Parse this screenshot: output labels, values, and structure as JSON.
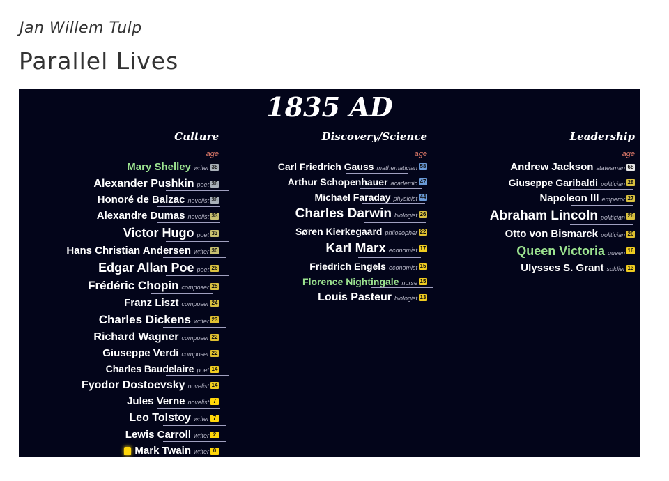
{
  "header": {
    "author": "Jan Willem Tulp",
    "title": "Parallel Lives"
  },
  "viz": {
    "year": "1835 AD",
    "age_label": "age",
    "columns": [
      {
        "key": "culture",
        "title": "Culture",
        "people": [
          {
            "name": "Mary Shelley",
            "role": "writer",
            "age": "38",
            "size": 15,
            "highlight": true,
            "color": "#a8b0b8"
          },
          {
            "name": "Alexander Pushkin",
            "role": "poet",
            "age": "36",
            "size": 16,
            "color": "#a8b0b8"
          },
          {
            "name": "Honoré de Balzac",
            "role": "novelist",
            "age": "36",
            "size": 15,
            "color": "#a8b0b8"
          },
          {
            "name": "Alexandre Dumas",
            "role": "novelist",
            "age": "33",
            "size": 15,
            "color": "#c8c070"
          },
          {
            "name": "Victor Hugo",
            "role": "poet",
            "age": "33",
            "size": 18,
            "color": "#c8c070"
          },
          {
            "name": "Hans Christian Andersen",
            "role": "writer",
            "age": "30",
            "size": 15,
            "color": "#c8c070"
          },
          {
            "name": "Edgar Allan Poe",
            "role": "poet",
            "age": "26",
            "size": 18,
            "color": "#d8c040"
          },
          {
            "name": "Frédéric Chopin",
            "role": "composer",
            "age": "25",
            "size": 17,
            "color": "#d8c040"
          },
          {
            "name": "Franz Liszt",
            "role": "composer",
            "age": "24",
            "size": 15,
            "color": "#d8c040"
          },
          {
            "name": "Charles Dickens",
            "role": "writer",
            "age": "23",
            "size": 17,
            "color": "#e0c030"
          },
          {
            "name": "Richard Wagner",
            "role": "composer",
            "age": "22",
            "size": 16,
            "color": "#e0c030"
          },
          {
            "name": "Giuseppe Verdi",
            "role": "composer",
            "age": "22",
            "size": 15,
            "color": "#e0c030"
          },
          {
            "name": "Charles Baudelaire",
            "role": "poet",
            "age": "14",
            "size": 14,
            "color": "#f0cc20"
          },
          {
            "name": "Fyodor Dostoevsky",
            "role": "novelist",
            "age": "14",
            "size": 16,
            "color": "#f0cc20"
          },
          {
            "name": "Jules Verne",
            "role": "novelist",
            "age": "7",
            "size": 15,
            "color": "#ffd60a"
          },
          {
            "name": "Leo Tolstoy",
            "role": "writer",
            "age": "7",
            "size": 16,
            "color": "#ffd60a"
          },
          {
            "name": "Lewis Carroll",
            "role": "writer",
            "age": "2",
            "size": 15,
            "color": "#ffd60a"
          },
          {
            "name": "Mark Twain",
            "role": "writer",
            "age": "0",
            "size": 15,
            "dot": true,
            "color": "#ffd60a"
          }
        ]
      },
      {
        "key": "science",
        "title": "Discovery/Science",
        "people": [
          {
            "name": "Carl Friedrich Gauss",
            "role": "mathematician",
            "age": "58",
            "size": 14,
            "color": "#6a9ad8"
          },
          {
            "name": "Arthur Schopenhauer",
            "role": "academic",
            "age": "47",
            "size": 14,
            "color": "#6a9ad8"
          },
          {
            "name": "Michael Faraday",
            "role": "physicist",
            "age": "44",
            "size": 14,
            "color": "#6a9ad8"
          },
          {
            "name": "Charles Darwin",
            "role": "biologist",
            "age": "26",
            "size": 19,
            "color": "#d8c040"
          },
          {
            "name": "Søren Kierkegaard",
            "role": "philosopher",
            "age": "22",
            "size": 14,
            "color": "#e0c030"
          },
          {
            "name": "Karl Marx",
            "role": "economist",
            "age": "17",
            "size": 19,
            "color": "#f0cc20"
          },
          {
            "name": "Friedrich Engels",
            "role": "economist",
            "age": "15",
            "size": 14,
            "color": "#f0cc20"
          },
          {
            "name": "Florence Nightingale",
            "role": "nurse",
            "age": "15",
            "size": 14,
            "highlight": true,
            "color": "#f0cc20"
          },
          {
            "name": "Louis Pasteur",
            "role": "biologist",
            "age": "13",
            "size": 16,
            "color": "#f0cc20"
          }
        ]
      },
      {
        "key": "leader",
        "title": "Leadership",
        "people": [
          {
            "name": "Andrew Jackson",
            "role": "statesman",
            "age": "68",
            "size": 15,
            "color": "#e8e8e8"
          },
          {
            "name": "Giuseppe Garibaldi",
            "role": "politician",
            "age": "28",
            "size": 14,
            "color": "#d8c040"
          },
          {
            "name": "Napoleon III",
            "role": "emperor",
            "age": "27",
            "size": 15,
            "color": "#d8c040"
          },
          {
            "name": "Abraham Lincoln",
            "role": "politician",
            "age": "26",
            "size": 19,
            "color": "#d8c040"
          },
          {
            "name": "Otto von Bismarck",
            "role": "politician",
            "age": "20",
            "size": 15,
            "color": "#e0c030"
          },
          {
            "name": "Queen Victoria",
            "role": "queen",
            "age": "16",
            "size": 18,
            "highlight": true,
            "color": "#f0cc20"
          },
          {
            "name": "Ulysses S. Grant",
            "role": "soldier",
            "age": "13",
            "size": 15,
            "color": "#f0cc20"
          }
        ]
      }
    ]
  }
}
